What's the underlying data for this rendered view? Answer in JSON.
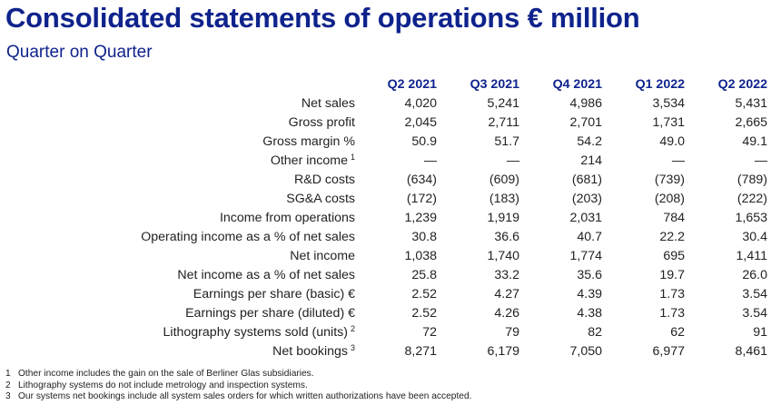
{
  "title": "Consolidated statements of operations € million",
  "subtitle": "Quarter on Quarter",
  "table": {
    "headers": [
      "Q2 2021",
      "Q3 2021",
      "Q4 2021",
      "Q1 2022",
      "Q2 2022"
    ],
    "rows": [
      {
        "label": "Net sales",
        "sup": "",
        "values": [
          "4,020",
          "5,241",
          "4,986",
          "3,534",
          "5,431"
        ]
      },
      {
        "label": "Gross profit",
        "sup": "",
        "values": [
          "2,045",
          "2,711",
          "2,701",
          "1,731",
          "2,665"
        ]
      },
      {
        "label": "Gross margin %",
        "sup": "",
        "values": [
          "50.9",
          "51.7",
          "54.2",
          "49.0",
          "49.1"
        ]
      },
      {
        "label": "Other income",
        "sup": "1",
        "values": [
          "—",
          "—",
          "214",
          "—",
          "—"
        ]
      },
      {
        "label": "R&D costs",
        "sup": "",
        "values": [
          "(634)",
          "(609)",
          "(681)",
          "(739)",
          "(789)"
        ]
      },
      {
        "label": "SG&A costs",
        "sup": "",
        "values": [
          "(172)",
          "(183)",
          "(203)",
          "(208)",
          "(222)"
        ]
      },
      {
        "label": "Income from operations",
        "sup": "",
        "values": [
          "1,239",
          "1,919",
          "2,031",
          "784",
          "1,653"
        ]
      },
      {
        "label": "Operating income as a % of net sales",
        "sup": "",
        "values": [
          "30.8",
          "36.6",
          "40.7",
          "22.2",
          "30.4"
        ]
      },
      {
        "label": "Net income",
        "sup": "",
        "values": [
          "1,038",
          "1,740",
          "1,774",
          "695",
          "1,411"
        ]
      },
      {
        "label": "Net income as a % of net sales",
        "sup": "",
        "values": [
          "25.8",
          "33.2",
          "35.6",
          "19.7",
          "26.0"
        ]
      },
      {
        "label": "Earnings per share (basic) €",
        "sup": "",
        "values": [
          "2.52",
          "4.27",
          "4.39",
          "1.73",
          "3.54"
        ]
      },
      {
        "label": "Earnings per share (diluted) €",
        "sup": "",
        "values": [
          "2.52",
          "4.26",
          "4.38",
          "1.73",
          "3.54"
        ]
      },
      {
        "label": "Lithography systems sold (units)",
        "sup": "2",
        "values": [
          "72",
          "79",
          "82",
          "62",
          "91"
        ]
      },
      {
        "label": "Net bookings",
        "sup": "3",
        "values": [
          "8,271",
          "6,179",
          "7,050",
          "6,977",
          "8,461"
        ]
      }
    ]
  },
  "footnotes": [
    {
      "num": "1",
      "text": "Other income includes the gain on the sale of Berliner Glas subsidiaries."
    },
    {
      "num": "2",
      "text": "Lithography systems do not include metrology and inspection systems."
    },
    {
      "num": "3",
      "text": "Our systems net bookings include all system sales orders for which written authorizations have been accepted."
    }
  ],
  "colors": {
    "accent": "#0f238c",
    "text": "#222222"
  }
}
